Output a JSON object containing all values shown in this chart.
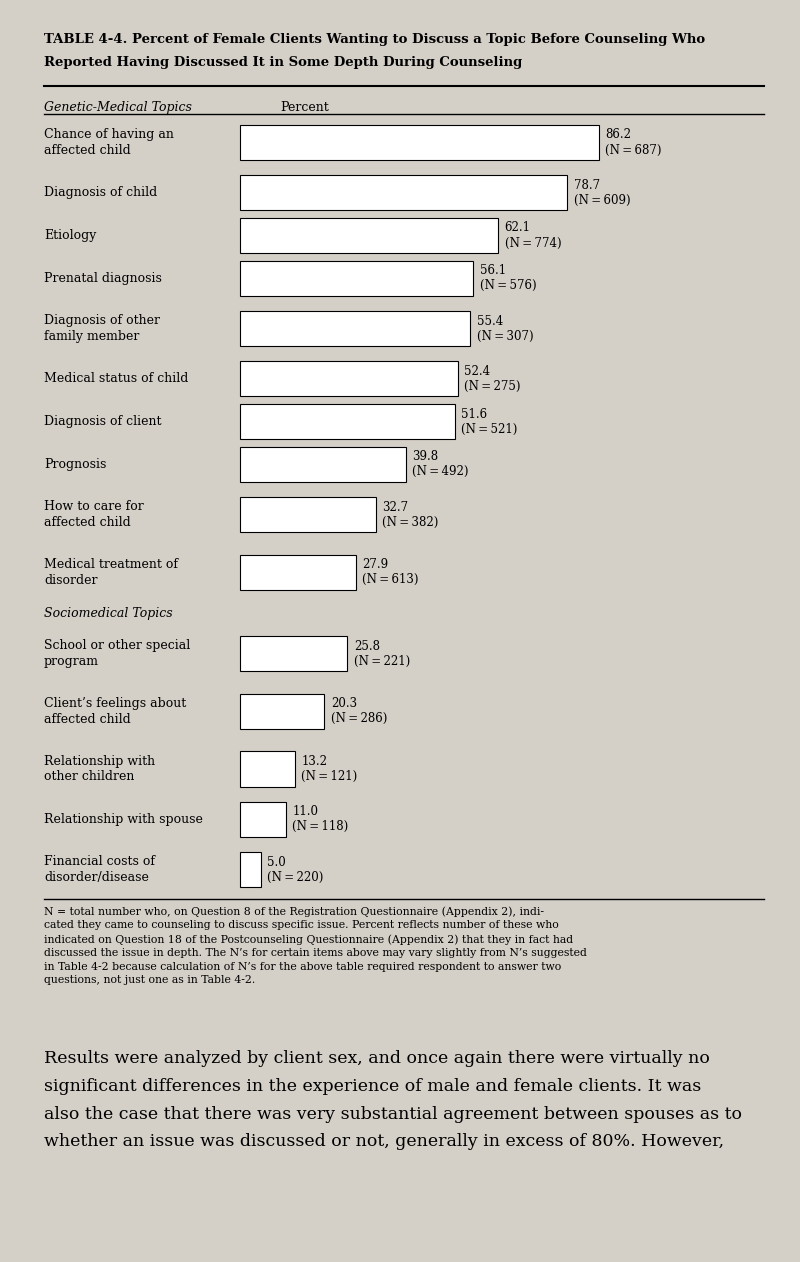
{
  "title_line1": "TABLE 4-4. Percent of Female Clients Wanting to Discuss a Topic Before Counseling Who",
  "title_line2": "Reported Having Discussed It in Some Depth During Counseling",
  "section1_label": "Genetic-Medical Topics",
  "section2_label": "Sociomedical Topics",
  "percent_label": "Percent",
  "categories": [
    "Chance of having an\naffected child",
    "Diagnosis of child",
    "Etiology",
    "Prenatal diagnosis",
    "Diagnosis of other\nfamily member",
    "Medical status of child",
    "Diagnosis of client",
    "Prognosis",
    "How to care for\naffected child",
    "Medical treatment of\ndisorder",
    "SECTION_BREAK",
    "School or other special\nprogram",
    "Client’s feelings about\naffected child",
    "Relationship with\nother children",
    "Relationship with spouse",
    "Financial costs of\ndisorder/disease"
  ],
  "values": [
    86.2,
    78.7,
    62.1,
    56.1,
    55.4,
    52.4,
    51.6,
    39.8,
    32.7,
    27.9,
    0,
    25.8,
    20.3,
    13.2,
    11.0,
    5.0
  ],
  "ns": [
    "N = 687",
    "N = 609",
    "N = 774",
    "N = 576",
    "N = 307",
    "N = 275",
    "N = 521",
    "N = 492",
    "N = 382",
    "N = 613",
    "",
    "N = 221",
    "N = 286",
    "N = 121",
    "N = 118",
    "N = 220"
  ],
  "bar_color": "#ffffff",
  "bar_edge_color": "#000000",
  "bg_color": "#d4d0c8",
  "text_color": "#000000",
  "footnote_small": "N = total number who, on Question 8 of the Registration Questionnaire (Appendix 2), indi-\ncated they came to counseling to discuss specific issue. Percent reflects number of these who\nindicated on Question 18 of the Postcounseling Questionnaire (Appendix 2) that they in fact had\ndiscussed the issue in depth. The N’s for certain items above may vary slightly from N’s suggested\nin Table 4-2 because calculation of N’s for the above table required respondent to answer two\nquestions, not just one as in Table 4-2.",
  "body_text_lines": [
    "Results were analyzed by client sex, and once again there were virtually no",
    "significant differences in the experience of male and female clients. It was",
    "also the case that there was very substantial agreement between spouses as to",
    "whether an issue was discussed or not, generally in excess of 80%. However,"
  ],
  "xmax": 100,
  "title_fontsize": 9.5,
  "label_fontsize": 9.0,
  "bar_label_fontsize": 8.5,
  "footnote_fontsize": 7.8,
  "body_fontsize": 12.5
}
